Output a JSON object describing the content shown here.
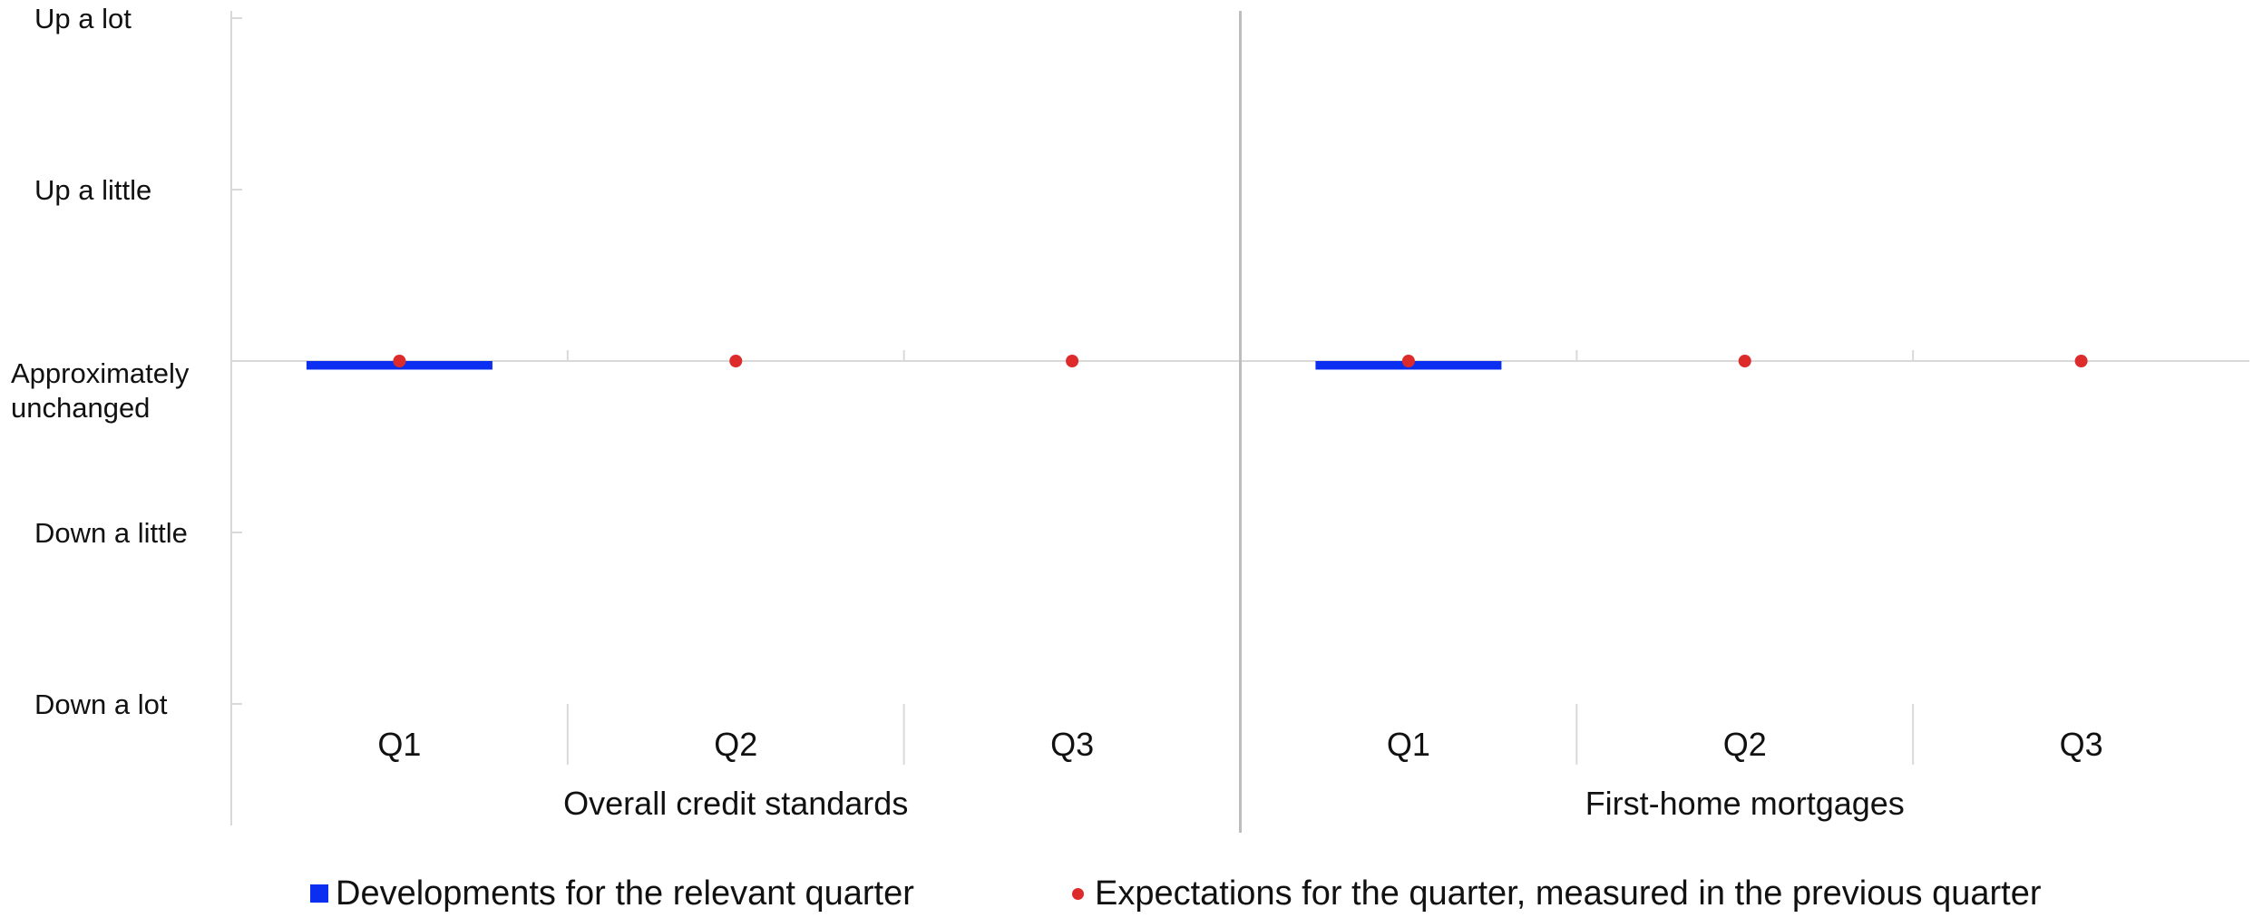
{
  "chart_data": {
    "type": "bar",
    "y_categories": [
      "Down a lot",
      "Down a little",
      "Approximately unchanged",
      "Up a little",
      "Up a lot"
    ],
    "y_tick_labels": [
      [
        "Up a lot"
      ],
      [
        "Up a little"
      ],
      [
        "Approximately",
        "unchanged"
      ],
      [
        "Down a little"
      ],
      [
        "Down a lot"
      ]
    ],
    "ylim": [
      -2,
      2
    ],
    "groups": [
      {
        "name": "Overall credit standards",
        "categories": [
          "Q1",
          "Q2",
          "Q3"
        ],
        "developments": [
          -0.05,
          null,
          null
        ],
        "expectations": [
          0,
          0,
          0
        ]
      },
      {
        "name": "First-home mortgages",
        "categories": [
          "Q1",
          "Q2",
          "Q3"
        ],
        "developments": [
          -0.05,
          null,
          null
        ],
        "expectations": [
          0,
          0,
          0
        ]
      }
    ],
    "series": [
      {
        "name": "Developments for the relevant quarter",
        "color": "#0a2ff0",
        "marker": "bar"
      },
      {
        "name": "Expectations for the quarter, measured in the previous quarter",
        "color": "#dd2b2b",
        "marker": "dot"
      }
    ],
    "legend_position": "bottom",
    "grid": false
  }
}
